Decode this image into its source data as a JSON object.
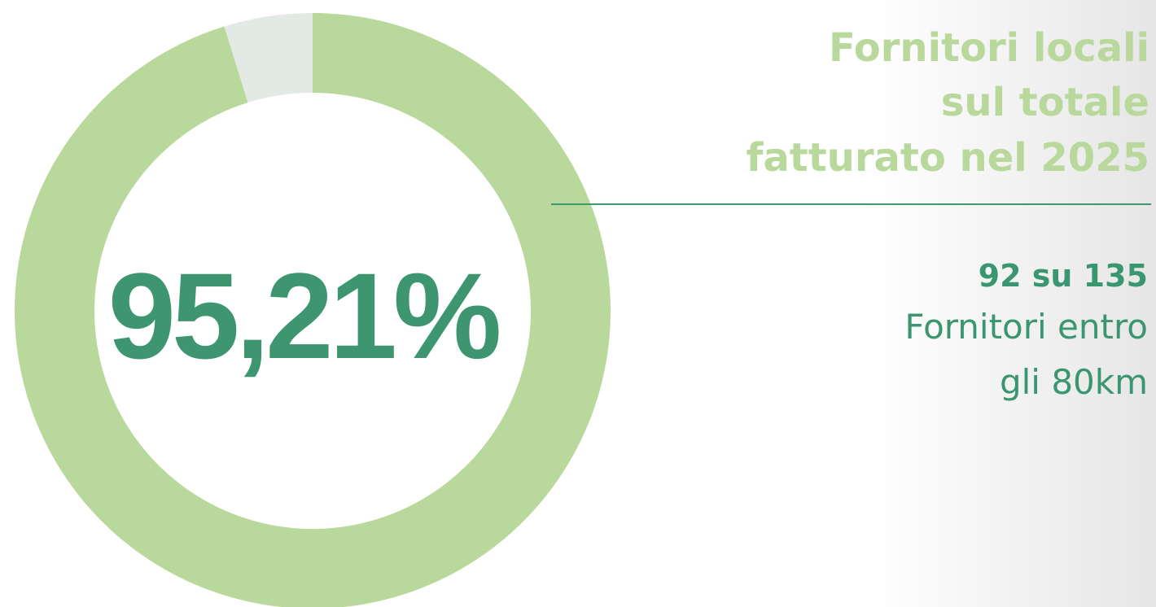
{
  "chart_data": {
    "type": "donut",
    "values": [
      95.21,
      4.79
    ],
    "value_labels": [
      "95,21%",
      null
    ],
    "colors": [
      "#b8d89c",
      "#e3e9e4"
    ],
    "title_lines": [
      "Fornitori locali",
      "sul totale",
      "fatturato nel 2025"
    ],
    "annotations": [
      "92 su 135",
      "Fornitori entro",
      "gli 80km"
    ]
  }
}
